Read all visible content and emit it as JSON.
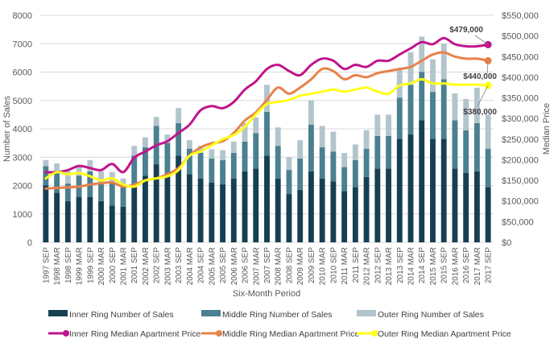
{
  "chart_data": {
    "type": "bar",
    "subtype": "stacked-bar-with-lines-dual-axis",
    "title": "",
    "xlabel": "Six-Month Period",
    "ylabel": "Number of Sales",
    "y2label": "Median Price",
    "ylim": [
      0,
      8000
    ],
    "y2lim": [
      0,
      550000
    ],
    "yticks": [
      "0",
      "1000",
      "2000",
      "3000",
      "4000",
      "5000",
      "6000",
      "7000",
      "8000"
    ],
    "y2ticks": [
      "$0",
      "$50,000",
      "$100,000",
      "$150,000",
      "$200,000",
      "$250,000",
      "$300,000",
      "$350,000",
      "$400,000",
      "$450,000",
      "$500,000",
      "$550,000"
    ],
    "grid": true,
    "legend_position": "bottom",
    "categories": [
      "1997 SEP",
      "1998 MAR",
      "1998 SEP",
      "1999 MAR",
      "1999 SEP",
      "2000 MAR",
      "2000 SEP",
      "2001 MAR",
      "2001 SEP",
      "2002 MAR",
      "2002 SEP",
      "2003 MAR",
      "2003 SEP",
      "2004 MAR",
      "2004 SEP",
      "2005 MAR",
      "2005 SEP",
      "2006 MAR",
      "2006 SEP",
      "2007 MAR",
      "2007 SEP",
      "2008 MAR",
      "2008 SEP",
      "2009 MAR",
      "2009 SEP",
      "2010 MAR",
      "2010 SEP",
      "2011 MAR",
      "2011 SEP",
      "2012 MAR",
      "2012 SEP",
      "2013 MAR",
      "2013 SEP",
      "2014 MAR",
      "2014 SEP",
      "2015 MAR",
      "2015 SEP",
      "2016 MAR",
      "2016 SEP",
      "2017 MAR",
      "2017 SEP"
    ],
    "bar_series": [
      {
        "name": "Inner Ring Number of Sales",
        "color": "#173f52",
        "values": [
          2000,
          1750,
          1450,
          1600,
          1600,
          1450,
          1300,
          1250,
          2050,
          2350,
          2750,
          2350,
          3050,
          2400,
          2250,
          2100,
          2050,
          2250,
          2500,
          2600,
          3050,
          2250,
          1700,
          1850,
          2500,
          2250,
          2150,
          1800,
          1950,
          2300,
          2600,
          2600,
          3650,
          3800,
          4300,
          3650,
          3650,
          2600,
          2450,
          2500,
          1950
        ]
      },
      {
        "name": "Middle Ring Number of Sales",
        "color": "#4a8090",
        "values": [
          680,
          700,
          620,
          740,
          900,
          650,
          800,
          700,
          1000,
          1000,
          1350,
          1150,
          1150,
          900,
          900,
          850,
          850,
          900,
          1050,
          1250,
          1550,
          1150,
          850,
          1100,
          1650,
          1100,
          1050,
          850,
          950,
          1000,
          1150,
          1150,
          1450,
          1750,
          1700,
          1650,
          2100,
          1700,
          1500,
          1700,
          1350
        ]
      },
      {
        "name": "Outer Ring Number of Sales",
        "color": "#b3c5cc",
        "values": [
          220,
          330,
          430,
          310,
          400,
          400,
          380,
          300,
          350,
          350,
          320,
          300,
          530,
          300,
          250,
          330,
          350,
          400,
          650,
          550,
          950,
          650,
          450,
          650,
          850,
          750,
          700,
          500,
          550,
          650,
          750,
          750,
          1000,
          1150,
          1250,
          1150,
          1250,
          950,
          1100,
          1250,
          1200
        ]
      }
    ],
    "line_series": [
      {
        "name": "Inner Ring Median Apartment Price",
        "color": "#c0148c",
        "values": [
          170000,
          170000,
          175000,
          185000,
          180000,
          175000,
          190000,
          170000,
          205000,
          220000,
          235000,
          245000,
          265000,
          285000,
          320000,
          330000,
          325000,
          340000,
          370000,
          390000,
          420000,
          430000,
          415000,
          405000,
          430000,
          445000,
          440000,
          420000,
          430000,
          425000,
          440000,
          440000,
          455000,
          470000,
          485000,
          480000,
          495000,
          480000,
          475000,
          475000,
          479000
        ]
      },
      {
        "name": "Middle Ring Median Apartment Price",
        "color": "#e8824a",
        "values": [
          130000,
          132000,
          133000,
          135000,
          140000,
          143000,
          145000,
          135000,
          140000,
          150000,
          155000,
          165000,
          180000,
          210000,
          230000,
          240000,
          245000,
          265000,
          295000,
          315000,
          345000,
          375000,
          360000,
          375000,
          395000,
          420000,
          415000,
          395000,
          405000,
          400000,
          410000,
          415000,
          420000,
          425000,
          440000,
          455000,
          460000,
          450000,
          445000,
          445000,
          440000
        ]
      },
      {
        "name": "Outer Ring Median Apartment Price",
        "color": "#ffff1a",
        "values": [
          155000,
          170000,
          165000,
          168000,
          160000,
          150000,
          155000,
          140000,
          135000,
          150000,
          155000,
          160000,
          175000,
          210000,
          220000,
          235000,
          250000,
          260000,
          280000,
          310000,
          335000,
          340000,
          345000,
          355000,
          360000,
          365000,
          370000,
          365000,
          370000,
          375000,
          365000,
          360000,
          380000,
          385000,
          395000,
          385000,
          385000,
          382000,
          382000,
          382000,
          380000
        ]
      }
    ],
    "annotations": [
      {
        "text": "$479,000",
        "series": "Inner Ring Median Apartment Price",
        "category": "2017 SEP"
      },
      {
        "text": "$440,000",
        "series": "Middle Ring Median Apartment Price",
        "category": "2017 SEP"
      },
      {
        "text": "$380,000",
        "series": "Outer Ring Median Apartment Price",
        "category": "2017 SEP"
      }
    ]
  }
}
